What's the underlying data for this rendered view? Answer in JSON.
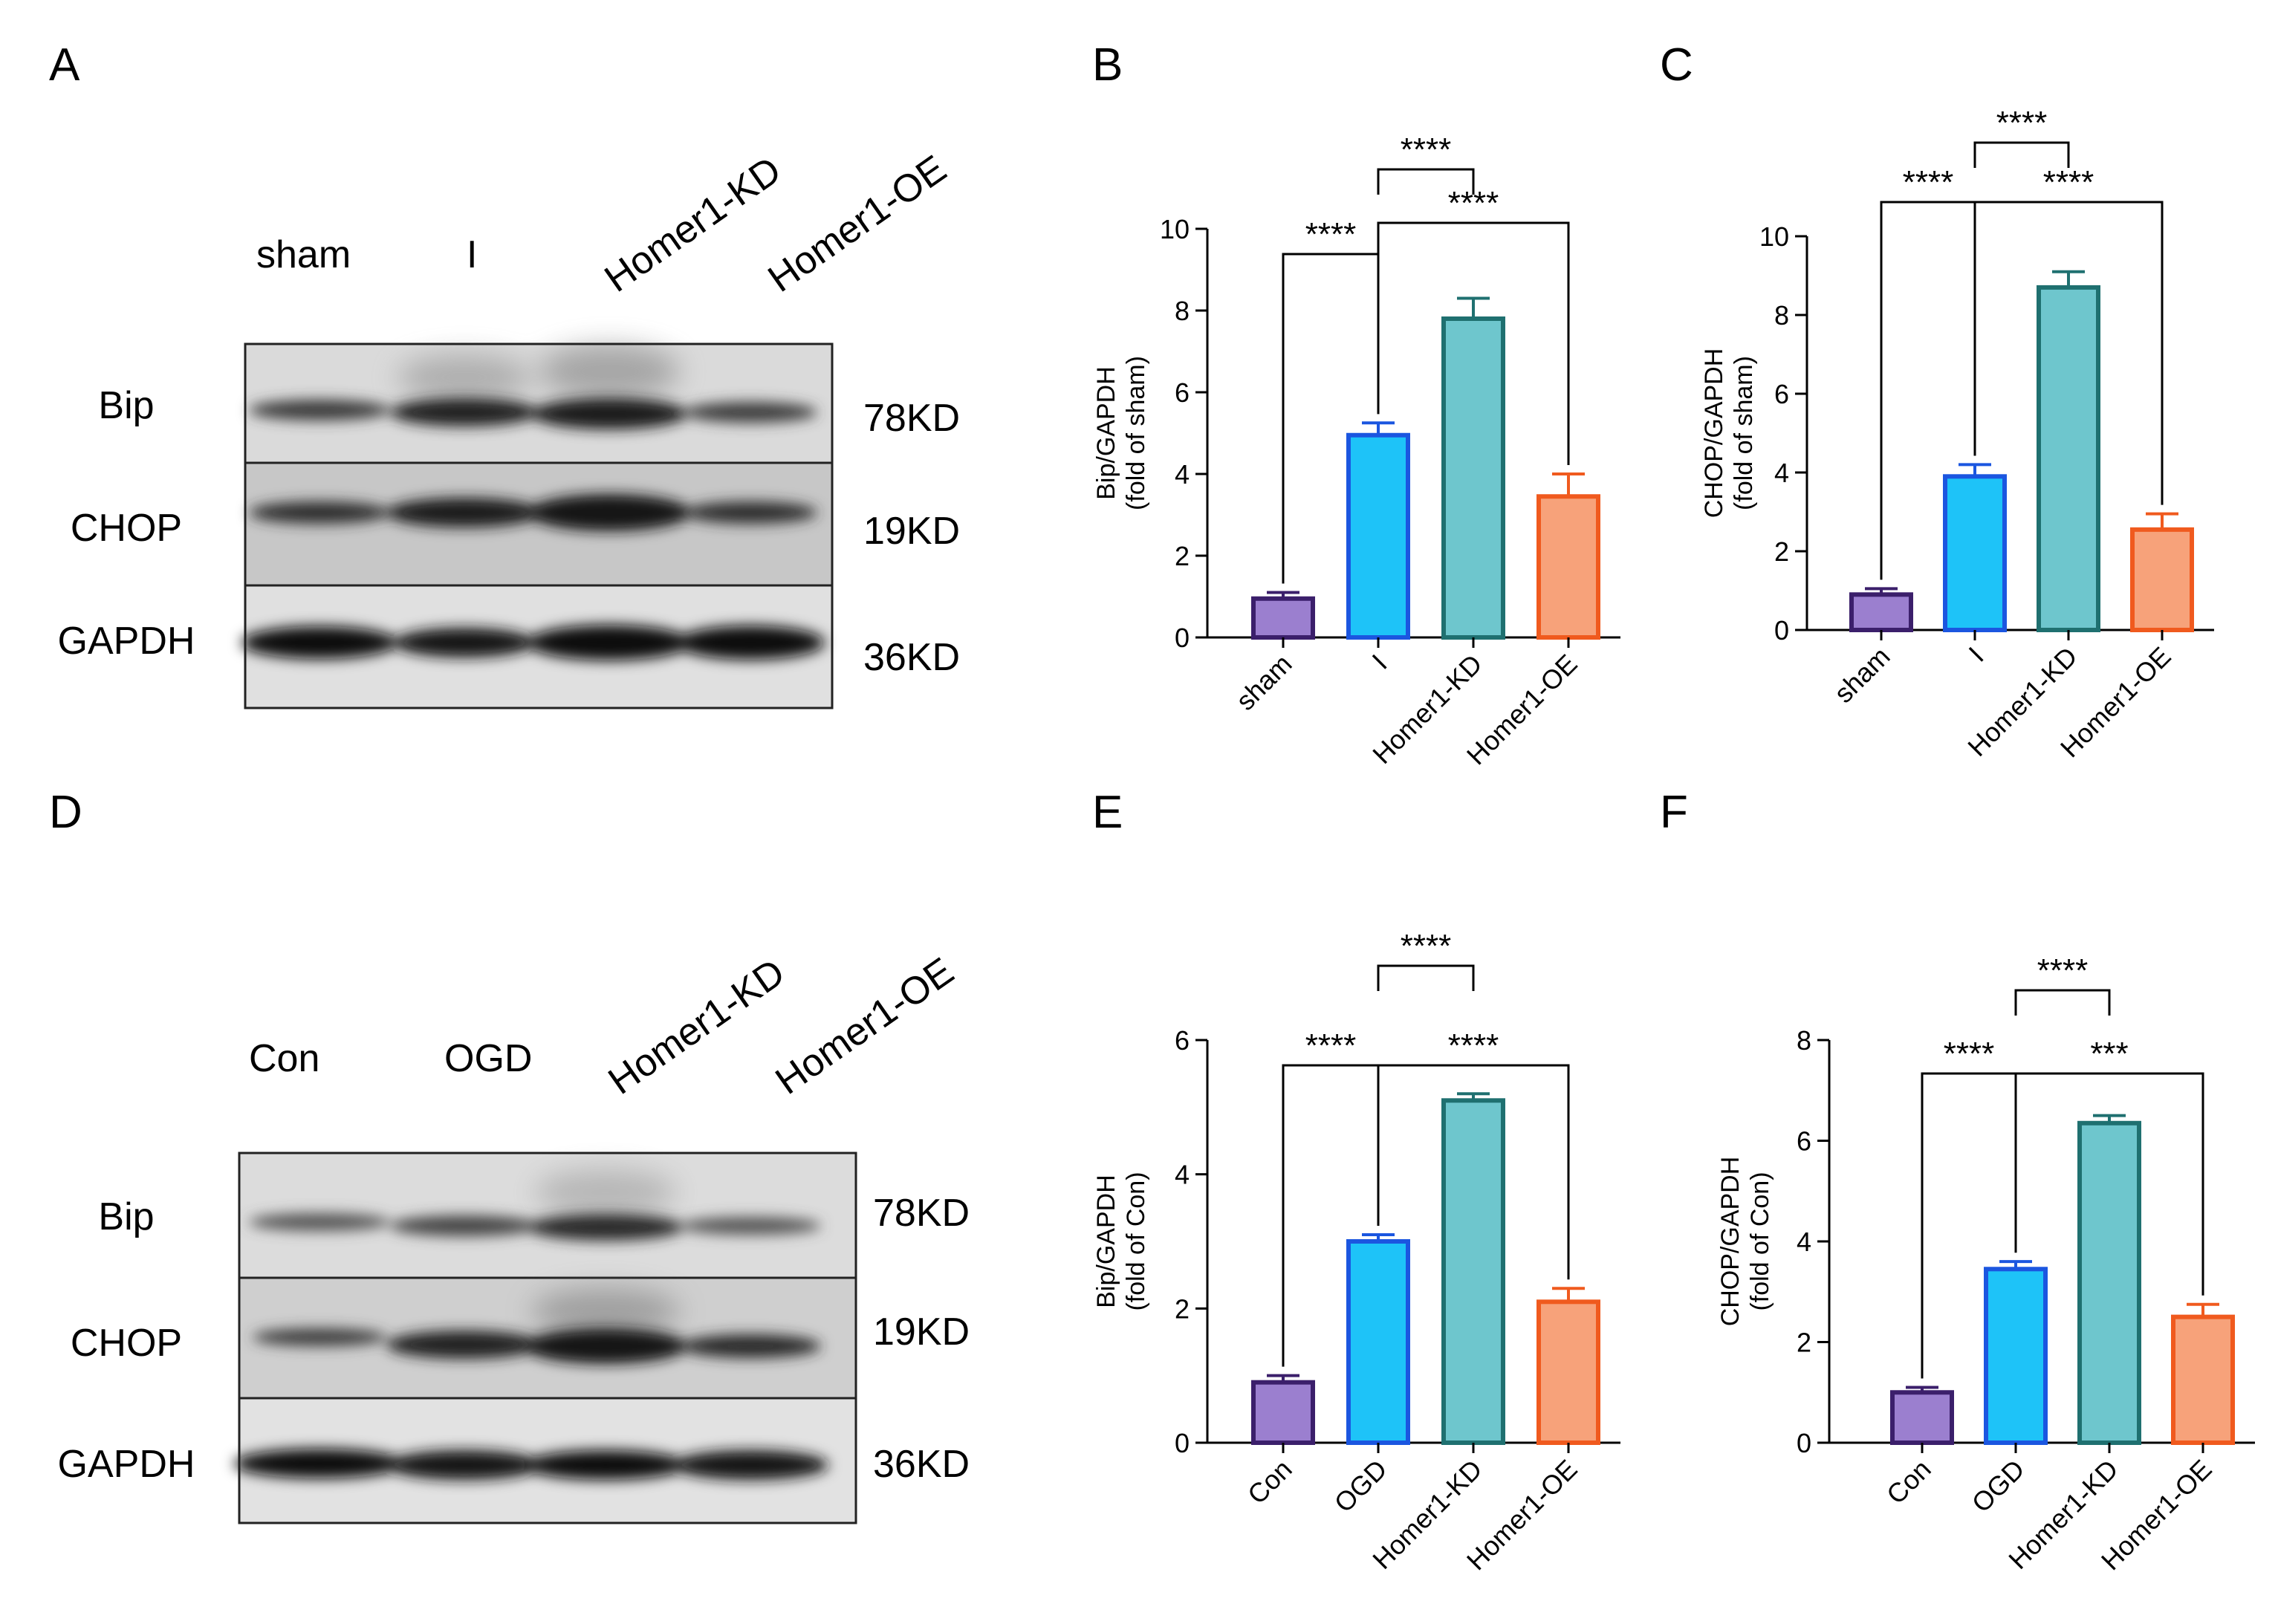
{
  "panel_letters": [
    "A",
    "B",
    "C",
    "D",
    "E",
    "F"
  ],
  "blots": [
    {
      "lanes": [
        "sham",
        "I",
        "Homer1-KD",
        "Homer1-OE"
      ],
      "rows": [
        {
          "protein": "Bip",
          "weight": "78KD"
        },
        {
          "protein": "CHOP",
          "weight": "19KD"
        },
        {
          "protein": "GAPDH",
          "weight": "36KD"
        }
      ]
    },
    {
      "lanes": [
        "Con",
        "OGD",
        "Homer1-KD",
        "Homer1-OE"
      ],
      "rows": [
        {
          "protein": "Bip",
          "weight": "78KD"
        },
        {
          "protein": "CHOP",
          "weight": "19KD"
        },
        {
          "protein": "GAPDH",
          "weight": "36KD"
        }
      ]
    }
  ],
  "colors": {
    "fills": [
      "#9b7fcf",
      "#1ec3f8",
      "#6ec6cd",
      "#f7a27a"
    ],
    "edges": [
      "#3b1f6b",
      "#1b56e0",
      "#1f7070",
      "#f05a1e"
    ]
  },
  "chart_data": [
    {
      "type": "bar",
      "categories": [
        "sham",
        "I",
        "Homer1-KD",
        "Homer1-OE"
      ],
      "values": [
        0.95,
        4.95,
        7.8,
        3.45
      ],
      "errors": [
        0.15,
        0.3,
        0.5,
        0.55
      ],
      "ylabel": [
        "Bip/GAPDH",
        "(fold of sham)"
      ],
      "ylim": [
        0,
        10
      ],
      "yticks": [
        0,
        2,
        4,
        6,
        8,
        10
      ],
      "significance": [
        {
          "from": 0,
          "to": 1,
          "label": "****"
        },
        {
          "from": 1,
          "to": 3,
          "label": "****"
        },
        {
          "from": 1,
          "to": 2,
          "label": "****"
        }
      ]
    },
    {
      "type": "bar",
      "categories": [
        "sham",
        "I",
        "Homer1-KD",
        "Homer1-OE"
      ],
      "values": [
        0.9,
        3.9,
        8.7,
        2.55
      ],
      "errors": [
        0.15,
        0.3,
        0.4,
        0.4
      ],
      "ylabel": [
        "CHOP/GAPDH",
        "(fold of sham)"
      ],
      "ylim": [
        0,
        10
      ],
      "yticks": [
        0,
        2,
        4,
        6,
        8,
        10
      ],
      "significance": [
        {
          "from": 0,
          "to": 1,
          "label": "****"
        },
        {
          "from": 1,
          "to": 3,
          "label": "****"
        },
        {
          "from": 1,
          "to": 2,
          "label": "****"
        }
      ]
    },
    {
      "type": "bar",
      "categories": [
        "Con",
        "OGD",
        "Homer1-KD",
        "Homer1-OE"
      ],
      "values": [
        0.9,
        3.0,
        5.1,
        2.1
      ],
      "errors": [
        0.1,
        0.1,
        0.1,
        0.2
      ],
      "ylabel": [
        "Bip/GAPDH",
        "(fold of Con)"
      ],
      "ylim": [
        0,
        6
      ],
      "yticks": [
        0,
        2,
        4,
        6
      ],
      "significance": [
        {
          "from": 0,
          "to": 1,
          "label": "****"
        },
        {
          "from": 1,
          "to": 3,
          "label": "****"
        },
        {
          "from": 1,
          "to": 2,
          "label": "****"
        }
      ]
    },
    {
      "type": "bar",
      "categories": [
        "Con",
        "OGD",
        "Homer1-KD",
        "Homer1-OE"
      ],
      "values": [
        1.0,
        3.45,
        6.35,
        2.5
      ],
      "errors": [
        0.1,
        0.15,
        0.15,
        0.25
      ],
      "ylabel": [
        "CHOP/GAPDH",
        "(fold of Con)"
      ],
      "ylim": [
        0,
        8
      ],
      "yticks": [
        0,
        2,
        4,
        6,
        8
      ],
      "significance": [
        {
          "from": 0,
          "to": 1,
          "label": "****"
        },
        {
          "from": 1,
          "to": 3,
          "label": "***"
        },
        {
          "from": 1,
          "to": 2,
          "label": "****"
        }
      ]
    }
  ]
}
